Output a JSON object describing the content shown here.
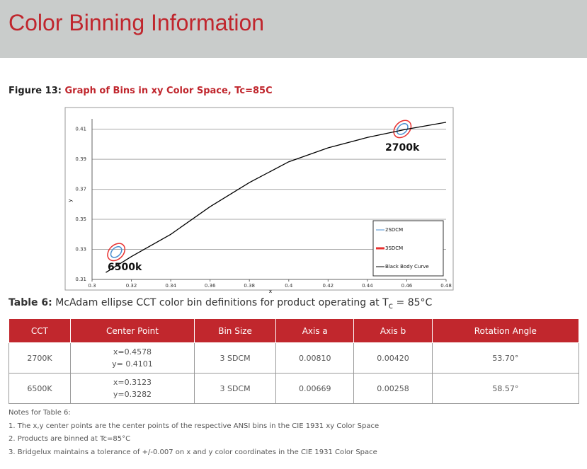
{
  "header": {
    "title": "Color Binning Information"
  },
  "figure": {
    "caption_label": "Figure 13:",
    "caption": "Graph of Bins in xy Color Space, Tc=85C"
  },
  "chart_data": {
    "type": "line",
    "x_label": "x",
    "y_label": "y",
    "xlim": [
      0.3,
      0.48
    ],
    "ylim": [
      0.31,
      0.415
    ],
    "xticks": [
      0.3,
      0.32,
      0.34,
      0.36,
      0.38,
      0.4,
      0.42,
      0.44,
      0.46,
      0.48
    ],
    "yticks": [
      0.31,
      0.33,
      0.35,
      0.37,
      0.39,
      0.41
    ],
    "grid": true,
    "legend": "lower right",
    "annotations": [
      "2700k",
      "6500k"
    ],
    "series": [
      {
        "name": "2SDCM",
        "color": "#4a8fd0",
        "x": [
          0.4578,
          0.3123
        ],
        "values": [
          0.4101,
          0.3282
        ]
      },
      {
        "name": "3SDCM",
        "color": "#e8302f",
        "x": [
          0.4578,
          0.3123
        ],
        "values": [
          0.4101,
          0.3282
        ]
      },
      {
        "name": "Black Body Curve",
        "color": "#000000",
        "x": [
          0.307,
          0.32,
          0.34,
          0.36,
          0.38,
          0.4,
          0.42,
          0.44,
          0.46,
          0.48
        ],
        "values": [
          0.3146,
          0.3252,
          0.34,
          0.3584,
          0.3745,
          0.3883,
          0.3976,
          0.4045,
          0.41,
          0.4146
        ]
      }
    ]
  },
  "table": {
    "caption_label": "Table 6:",
    "caption_pre": "McAdam ellipse CCT color bin definitions for product operating at T",
    "caption_sub": "c",
    "caption_post": " = 85°C",
    "headers": [
      "CCT",
      "Center Point",
      "Bin Size",
      "Axis a",
      "Axis b",
      "Rotation Angle"
    ],
    "rows": [
      [
        "2700K",
        [
          "x=0.4578",
          "y= 0.4101"
        ],
        "3 SDCM",
        "0.00810",
        "0.00420",
        "53.70°"
      ],
      [
        "6500K",
        [
          "x=0.3123",
          "y=0.3282"
        ],
        "3 SDCM",
        "0.00669",
        "0.00258",
        "58.57°"
      ]
    ]
  },
  "notes": {
    "title": "Notes for Table 6:",
    "items": [
      {
        "number": "1.",
        "text": "The x,y center points are the center points of the respective ANSI bins in the CIE 1931 xy Color Space"
      },
      {
        "number": "2.",
        "text": "Products are binned at Tc=85°C"
      },
      {
        "number": "3.",
        "text": "Bridgelux maintains a tolerance of +/-0.007 on x and y color coordinates in the CIE 1931 Color Space"
      }
    ]
  }
}
